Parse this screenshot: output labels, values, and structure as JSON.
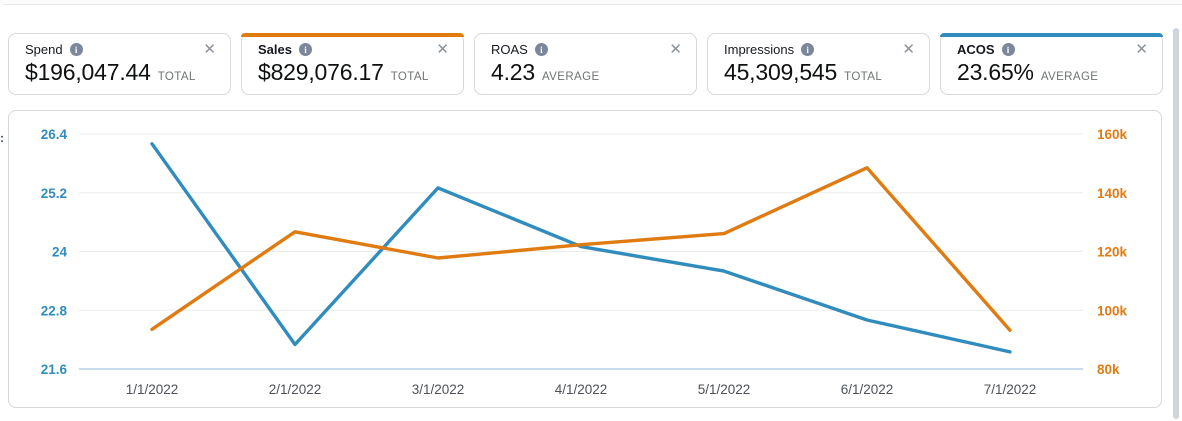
{
  "cards": [
    {
      "label": "Spend",
      "value": "$196,047.44",
      "unit": "TOTAL",
      "selected": false,
      "accent": null
    },
    {
      "label": "Sales",
      "value": "$829,076.17",
      "unit": "TOTAL",
      "selected": true,
      "accent": "#e07b0c"
    },
    {
      "label": "ROAS",
      "value": "4.23",
      "unit": "AVERAGE",
      "selected": false,
      "accent": null
    },
    {
      "label": "Impressions",
      "value": "45,309,545",
      "unit": "TOTAL",
      "selected": false,
      "accent": null
    },
    {
      "label": "ACOS",
      "value": "23.65%",
      "unit": "AVERAGE",
      "selected": true,
      "accent": "#2e8cbf"
    }
  ],
  "icons": {
    "info": "i",
    "close": "✕"
  },
  "clipped_fragment": ":",
  "chart_data": {
    "type": "line",
    "x": [
      "1/1/2022",
      "2/1/2022",
      "3/1/2022",
      "4/1/2022",
      "5/1/2022",
      "6/1/2022",
      "7/1/2022"
    ],
    "series": [
      {
        "name": "ACOS",
        "axis": "left",
        "color": "#318cbe",
        "values": [
          26.2,
          22.1,
          25.3,
          24.1,
          23.6,
          22.6,
          21.95
        ]
      },
      {
        "name": "Sales",
        "axis": "right",
        "color": "#e07b12",
        "values": [
          93500,
          126700,
          117800,
          122300,
          126100,
          148500,
          93200
        ]
      }
    ],
    "left_axis": {
      "ticks": [
        26.4,
        25.2,
        24,
        22.8,
        21.6
      ],
      "min": 21.6,
      "max": 26.4,
      "color": "#318cbe"
    },
    "right_axis": {
      "ticks": [
        "160k",
        "140k",
        "120k",
        "100k",
        "80k"
      ],
      "min": 80000,
      "max": 160000,
      "color": "#e07b12"
    },
    "grid": true,
    "legend": "none",
    "grid_color": "#ececec",
    "baseline_color": "#b7cfe6",
    "x_label_color": "#4d5156"
  }
}
